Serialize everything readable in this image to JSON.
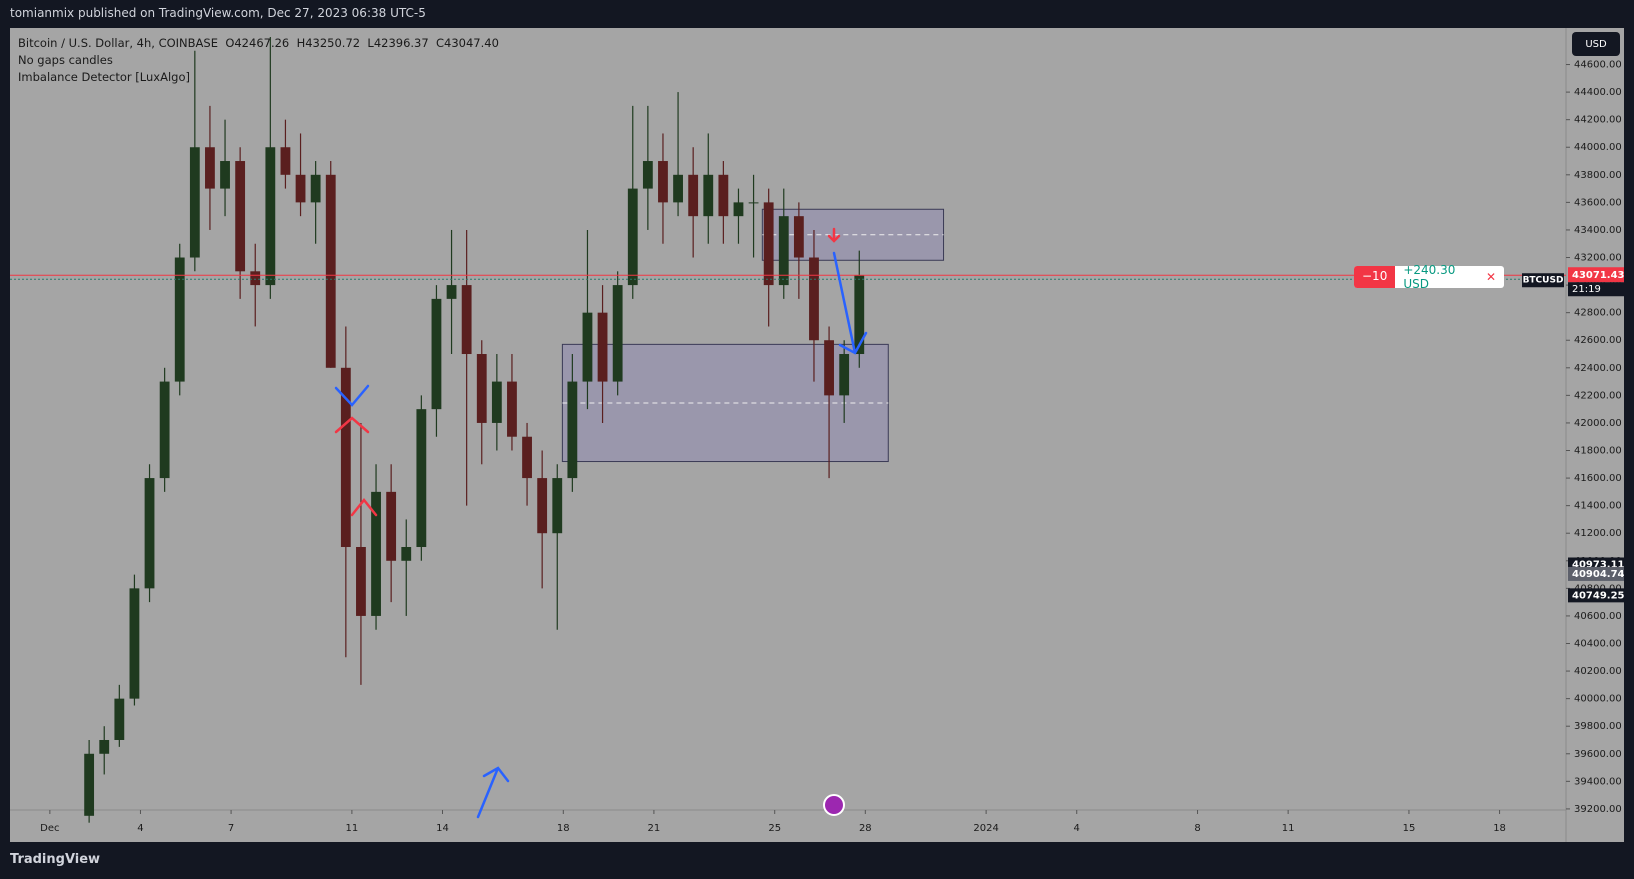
{
  "header": {
    "title": "tomianmix published on TradingView.com, Dec 27, 2023 06:38 UTC-5"
  },
  "footer": {
    "brand": "TradingView"
  },
  "legend": {
    "symbol": "Bitcoin / U.S. Dollar, 4h, COINBASE",
    "open": "O42467.26",
    "high": "H43250.72",
    "low": "L42396.37",
    "close": "C43047.40",
    "lines": [
      "No gaps candles",
      "Imbalance Detector [LuxAlgo]"
    ]
  },
  "toolbar": {
    "currency": "USD"
  },
  "position": {
    "quantity": "−10",
    "pnl": "+240.30 USD",
    "close": "✕"
  },
  "chart_data": {
    "type": "candlestick",
    "x": [
      1.3,
      1.8,
      2.3,
      2.8,
      3.3,
      3.8,
      4.3,
      4.8,
      5.3,
      5.8,
      6.3,
      6.8,
      7.3,
      7.8,
      8.3,
      8.8,
      9.3,
      9.8,
      10.3,
      10.8,
      11.3,
      11.8,
      12.3,
      12.8,
      13.3,
      13.8,
      14.3,
      14.8,
      15.3,
      15.8,
      16.3,
      16.8,
      17.3,
      17.8,
      18.3,
      18.8,
      19.3,
      19.8,
      20.3,
      20.8,
      21.3,
      21.8,
      22.3,
      22.8,
      23.3,
      23.8,
      24.3,
      24.8,
      25.3,
      25.8,
      26.3,
      26.8
    ],
    "open": [
      39150,
      39600,
      39700,
      40000,
      40800,
      41600,
      42300,
      43200,
      44000,
      43700,
      43900,
      43100,
      43000,
      44000,
      43800,
      43600,
      43800,
      42400,
      41100,
      40600,
      41500,
      41000,
      41100,
      42100,
      42900,
      43000,
      42500,
      42000,
      42300,
      41900,
      41600,
      41200,
      41600,
      42300,
      42800,
      42300,
      43000,
      43700,
      43900,
      43600,
      43800,
      43500,
      43800,
      43500,
      43600,
      43600,
      43000,
      43500,
      43200,
      42600,
      42200,
      42500
    ],
    "high": [
      39700,
      39800,
      40100,
      40900,
      41700,
      42400,
      43300,
      44700,
      44300,
      44200,
      44000,
      43300,
      44800,
      44200,
      44100,
      43900,
      43900,
      42700,
      42000,
      41700,
      41700,
      41300,
      42200,
      43000,
      43400,
      43400,
      42600,
      42500,
      42500,
      42000,
      41800,
      41700,
      42500,
      43400,
      43000,
      43100,
      44300,
      44300,
      44100,
      44400,
      44000,
      44100,
      43900,
      43700,
      43800,
      43700,
      43700,
      43600,
      43400,
      42700,
      42600,
      43250
    ],
    "low": [
      39100,
      39450,
      39650,
      39950,
      40700,
      41500,
      42200,
      43100,
      43400,
      43500,
      42900,
      42700,
      42900,
      43700,
      43500,
      43300,
      42400,
      40300,
      40100,
      40500,
      40700,
      40600,
      41000,
      41900,
      42500,
      41400,
      41700,
      41800,
      41800,
      41400,
      40800,
      40500,
      41500,
      42100,
      42000,
      42200,
      42900,
      43400,
      43300,
      43500,
      43200,
      43300,
      43300,
      43300,
      43200,
      42700,
      42900,
      42900,
      42300,
      41600,
      42000,
      42400
    ],
    "close": [
      39600,
      39700,
      40000,
      40800,
      41600,
      42300,
      43200,
      44000,
      43700,
      43900,
      43100,
      43000,
      44000,
      43800,
      43600,
      43800,
      42400,
      41100,
      40600,
      41500,
      41000,
      41100,
      42100,
      42900,
      43000,
      42500,
      42000,
      42300,
      41900,
      41600,
      41200,
      41600,
      42300,
      42800,
      42300,
      43000,
      43700,
      43900,
      43600,
      43800,
      43500,
      43800,
      43500,
      43600,
      43600,
      43000,
      43500,
      43200,
      42600,
      42200,
      42500,
      43071
    ],
    "up_color": "#1f3a1f",
    "down_color": "#5a1f1f",
    "xlim": [
      -1.32,
      50.2
    ],
    "xticks": [
      {
        "value": 0,
        "label": "Dec"
      },
      {
        "value": 3,
        "label": "4"
      },
      {
        "value": 6,
        "label": "7"
      },
      {
        "value": 10,
        "label": "11"
      },
      {
        "value": 13,
        "label": "14"
      },
      {
        "value": 17,
        "label": "18"
      },
      {
        "value": 20,
        "label": "21"
      },
      {
        "value": 24,
        "label": "25"
      },
      {
        "value": 27,
        "label": "28"
      },
      {
        "value": 31,
        "label": "2024"
      },
      {
        "value": 34,
        "label": "4"
      },
      {
        "value": 38,
        "label": "8"
      },
      {
        "value": 41,
        "label": "11"
      },
      {
        "value": 45,
        "label": "15"
      },
      {
        "value": 48,
        "label": "18"
      }
    ],
    "ylim": [
      38960,
      44865
    ],
    "yticks": [
      {
        "value": 39200,
        "label": "39200.00"
      },
      {
        "value": 39400,
        "label": "39400.00"
      },
      {
        "value": 39600,
        "label": "39600.00"
      },
      {
        "value": 39800,
        "label": "39800.00"
      },
      {
        "value": 40000,
        "label": "40000.00"
      },
      {
        "value": 40200,
        "label": "40200.00"
      },
      {
        "value": 40400,
        "label": "40400.00"
      },
      {
        "value": 40600,
        "label": "40600.00"
      },
      {
        "value": 40800,
        "label": "40800.00"
      },
      {
        "value": 41000,
        "label": "41000.00"
      },
      {
        "value": 41200,
        "label": "41200.00"
      },
      {
        "value": 41400,
        "label": "41400.00"
      },
      {
        "value": 41600,
        "label": "41600.00"
      },
      {
        "value": 41800,
        "label": "41800.00"
      },
      {
        "value": 42000,
        "label": "42000.00"
      },
      {
        "value": 42200,
        "label": "42200.00"
      },
      {
        "value": 42400,
        "label": "42400.00"
      },
      {
        "value": 42600,
        "label": "42600.00"
      },
      {
        "value": 42800,
        "label": "42800.00"
      },
      {
        "value": 43000,
        "label": "43000.00"
      },
      {
        "value": 43200,
        "label": "43200.00"
      },
      {
        "value": 43400,
        "label": "43400.00"
      },
      {
        "value": 43600,
        "label": "43600.00"
      },
      {
        "value": 43800,
        "label": "43800.00"
      },
      {
        "value": 44000,
        "label": "44000.00"
      },
      {
        "value": 44200,
        "label": "44200.00"
      },
      {
        "value": 44400,
        "label": "44400.00"
      },
      {
        "value": 44600,
        "label": "44600.00"
      }
    ],
    "zones": [
      {
        "x": [
          16.97,
          27.76
        ],
        "y": [
          41720,
          42570
        ]
      },
      {
        "x": [
          23.59,
          29.59
        ],
        "y": [
          43180,
          43550
        ]
      }
    ],
    "price_line": {
      "value": 43071.43,
      "color": "#f23645",
      "symbol": "BTCUSD",
      "countdown": "21:19"
    },
    "price_tags": [
      40973.11,
      40904.74,
      40749.25
    ]
  }
}
